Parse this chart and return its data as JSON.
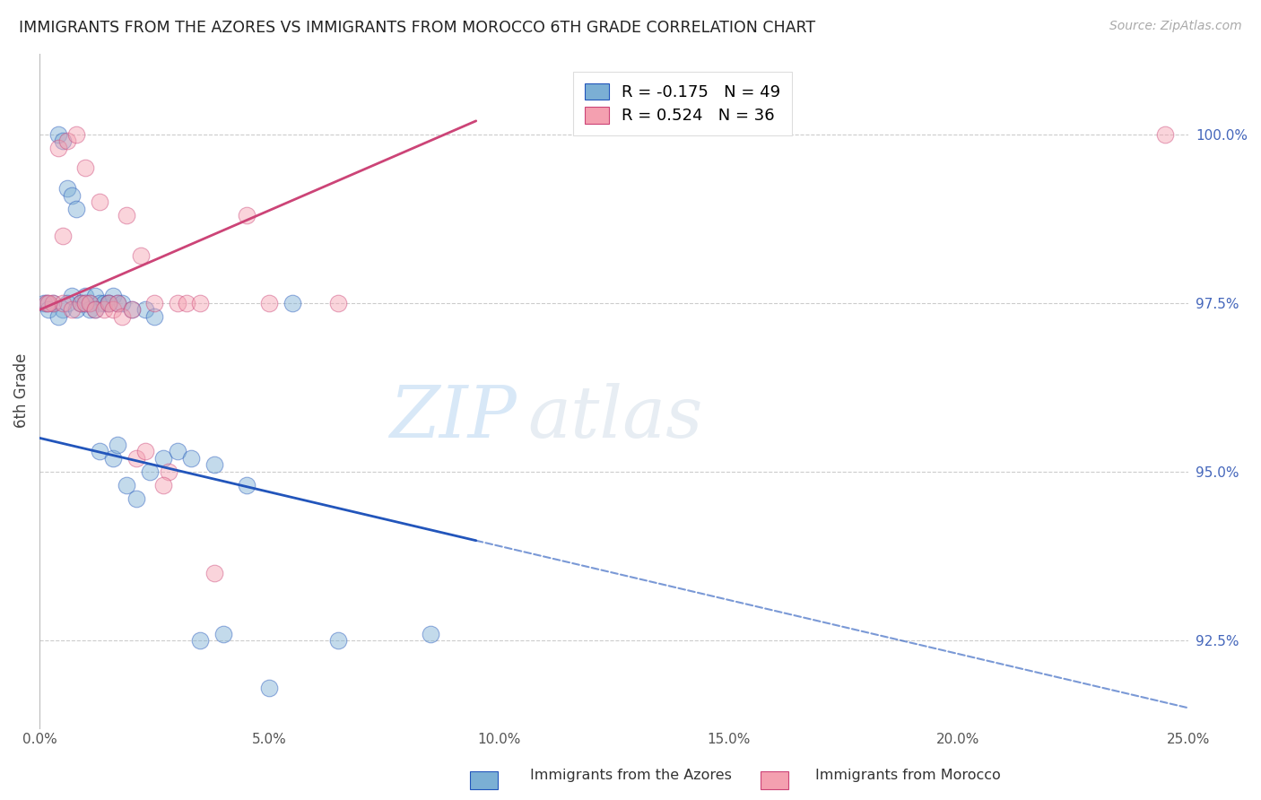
{
  "title": "IMMIGRANTS FROM THE AZORES VS IMMIGRANTS FROM MOROCCO 6TH GRADE CORRELATION CHART",
  "source": "Source: ZipAtlas.com",
  "ylabel_left": "6th Grade",
  "legend_label_blue": "Immigrants from the Azores",
  "legend_label_pink": "Immigrants from Morocco",
  "R_blue": -0.175,
  "N_blue": 49,
  "R_pink": 0.524,
  "N_pink": 36,
  "color_blue": "#7BAFD4",
  "color_pink": "#F4A0B0",
  "color_blue_line": "#2255BB",
  "color_pink_line": "#CC4477",
  "color_right_axis": "#4466BB",
  "xmin": 0.0,
  "xmax": 25.0,
  "ymin": 91.2,
  "ymax": 101.2,
  "yticks": [
    92.5,
    95.0,
    97.5,
    100.0
  ],
  "xticks": [
    0.0,
    5.0,
    10.0,
    15.0,
    20.0,
    25.0
  ],
  "watermark_zip": "ZIP",
  "watermark_atlas": "atlas",
  "blue_scatter_x": [
    0.15,
    0.4,
    0.5,
    0.6,
    0.7,
    0.8,
    0.9,
    1.0,
    1.1,
    1.2,
    1.3,
    1.4,
    1.5,
    1.6,
    1.7,
    1.8,
    2.0,
    2.3,
    2.5,
    2.7,
    3.0,
    3.3,
    3.8,
    4.5,
    5.5,
    0.1,
    0.3,
    0.5,
    0.7,
    0.9,
    1.1,
    1.3,
    1.5,
    1.6,
    1.7,
    1.9,
    2.1,
    2.4,
    3.5,
    4.0,
    5.0,
    6.5,
    8.5,
    0.2,
    0.4,
    0.6,
    0.8,
    1.0,
    1.2
  ],
  "blue_scatter_y": [
    97.5,
    100.0,
    99.9,
    99.2,
    99.1,
    98.9,
    97.5,
    97.6,
    97.5,
    97.6,
    97.5,
    97.5,
    97.5,
    97.6,
    97.5,
    97.5,
    97.4,
    97.4,
    97.3,
    95.2,
    95.3,
    95.2,
    95.1,
    94.8,
    97.5,
    97.5,
    97.5,
    97.4,
    97.6,
    97.5,
    97.4,
    95.3,
    97.5,
    95.2,
    95.4,
    94.8,
    94.6,
    95.0,
    92.5,
    92.6,
    91.8,
    92.5,
    92.6,
    97.4,
    97.3,
    97.5,
    97.4,
    97.5,
    97.4
  ],
  "pink_scatter_x": [
    0.15,
    0.3,
    0.5,
    0.7,
    0.9,
    1.0,
    1.1,
    1.2,
    1.4,
    1.5,
    1.6,
    1.7,
    1.8,
    2.0,
    2.2,
    2.5,
    2.8,
    3.0,
    3.2,
    3.5,
    0.4,
    0.6,
    0.8,
    1.0,
    1.3,
    1.9,
    2.1,
    2.3,
    2.7,
    3.8,
    4.5,
    5.0,
    6.5,
    24.5,
    0.2,
    0.5
  ],
  "pink_scatter_y": [
    97.5,
    97.5,
    97.5,
    97.4,
    97.5,
    97.5,
    97.5,
    97.4,
    97.4,
    97.5,
    97.4,
    97.5,
    97.3,
    97.4,
    98.2,
    97.5,
    95.0,
    97.5,
    97.5,
    97.5,
    99.8,
    99.9,
    100.0,
    99.5,
    99.0,
    98.8,
    95.2,
    95.3,
    94.8,
    93.5,
    98.8,
    97.5,
    97.5,
    100.0,
    97.5,
    98.5
  ],
  "blue_line_x0": 0.0,
  "blue_line_y0": 95.5,
  "blue_line_x1": 25.0,
  "blue_line_y1": 91.5,
  "blue_solid_x1": 9.5,
  "pink_line_x0": 0.0,
  "pink_line_y0": 97.4,
  "pink_line_x1": 9.5,
  "pink_line_y1": 100.2
}
